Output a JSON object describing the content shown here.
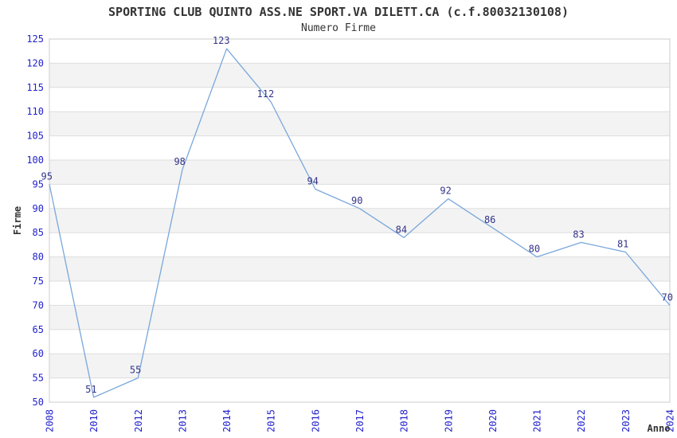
{
  "header": {
    "title": "SPORTING CLUB QUINTO ASS.NE SPORT.VA DILETT.CA (c.f.80032130108)",
    "subtitle": "Numero Firme"
  },
  "chart_data": {
    "type": "line",
    "title": "SPORTING CLUB QUINTO ASS.NE SPORT.VA DILETT.CA (c.f.80032130108)",
    "subtitle": "Numero Firme",
    "xlabel": "Anno",
    "ylabel": "Firme",
    "categories": [
      "2008",
      "2010",
      "2012",
      "2013",
      "2014",
      "2015",
      "2016",
      "2017",
      "2018",
      "2019",
      "2020",
      "2021",
      "2022",
      "2023",
      "2024"
    ],
    "values": [
      95,
      51,
      55,
      98,
      123,
      112,
      94,
      90,
      84,
      92,
      86,
      80,
      83,
      81,
      70
    ],
    "ylim": [
      50,
      125
    ],
    "ytick_step": 5,
    "yticks": [
      50,
      55,
      60,
      65,
      70,
      75,
      80,
      85,
      90,
      95,
      100,
      105,
      110,
      115,
      120,
      125
    ],
    "grid": "horizontal",
    "banded_background": true,
    "legend": "none",
    "x_tick_rotation_deg": -90,
    "data_labels_visible": true,
    "colors": {
      "line": "#79a7db",
      "tick_label": "#2222cc",
      "data_label": "#333388",
      "grid_line": "#dddddd",
      "band_fill": "#f3f3f3",
      "plot_border": "#cccccc",
      "title_text": "#333333",
      "background": "#ffffff"
    }
  }
}
